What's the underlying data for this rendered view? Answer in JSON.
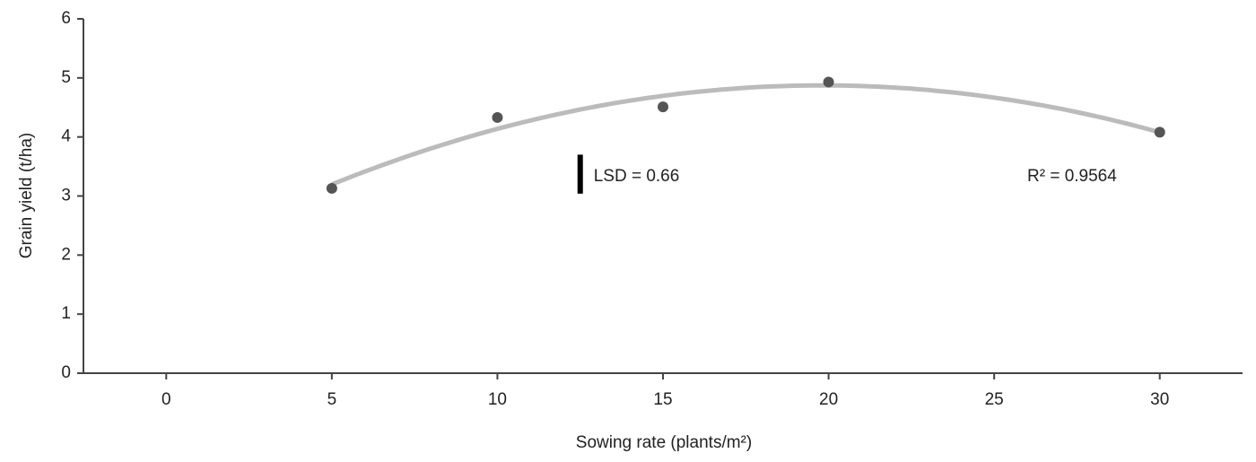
{
  "chart_data": {
    "type": "scatter",
    "x_label": "Sowing rate (plants/m²)",
    "y_label": "Grain yield (t/ha)",
    "series": [
      {
        "name": "Grain yield",
        "color": "#555555",
        "x": [
          5,
          10,
          15,
          20,
          30
        ],
        "values": [
          3.13,
          4.33,
          4.51,
          4.93,
          4.08
        ]
      }
    ],
    "trendline": {
      "kind": "quadratic",
      "color": "#bbbbbb"
    },
    "lsd": {
      "value": 0.66,
      "label": "LSD = 0.66"
    },
    "annotations": [
      "R² = 0.9564"
    ],
    "xlim": [
      -2.5,
      32.5
    ],
    "xticks": [
      0,
      5,
      10,
      15,
      20,
      25,
      30
    ],
    "ylim": [
      0,
      6
    ],
    "yticks": [
      0,
      1,
      2,
      3,
      4,
      5,
      6
    ],
    "grid": false
  }
}
